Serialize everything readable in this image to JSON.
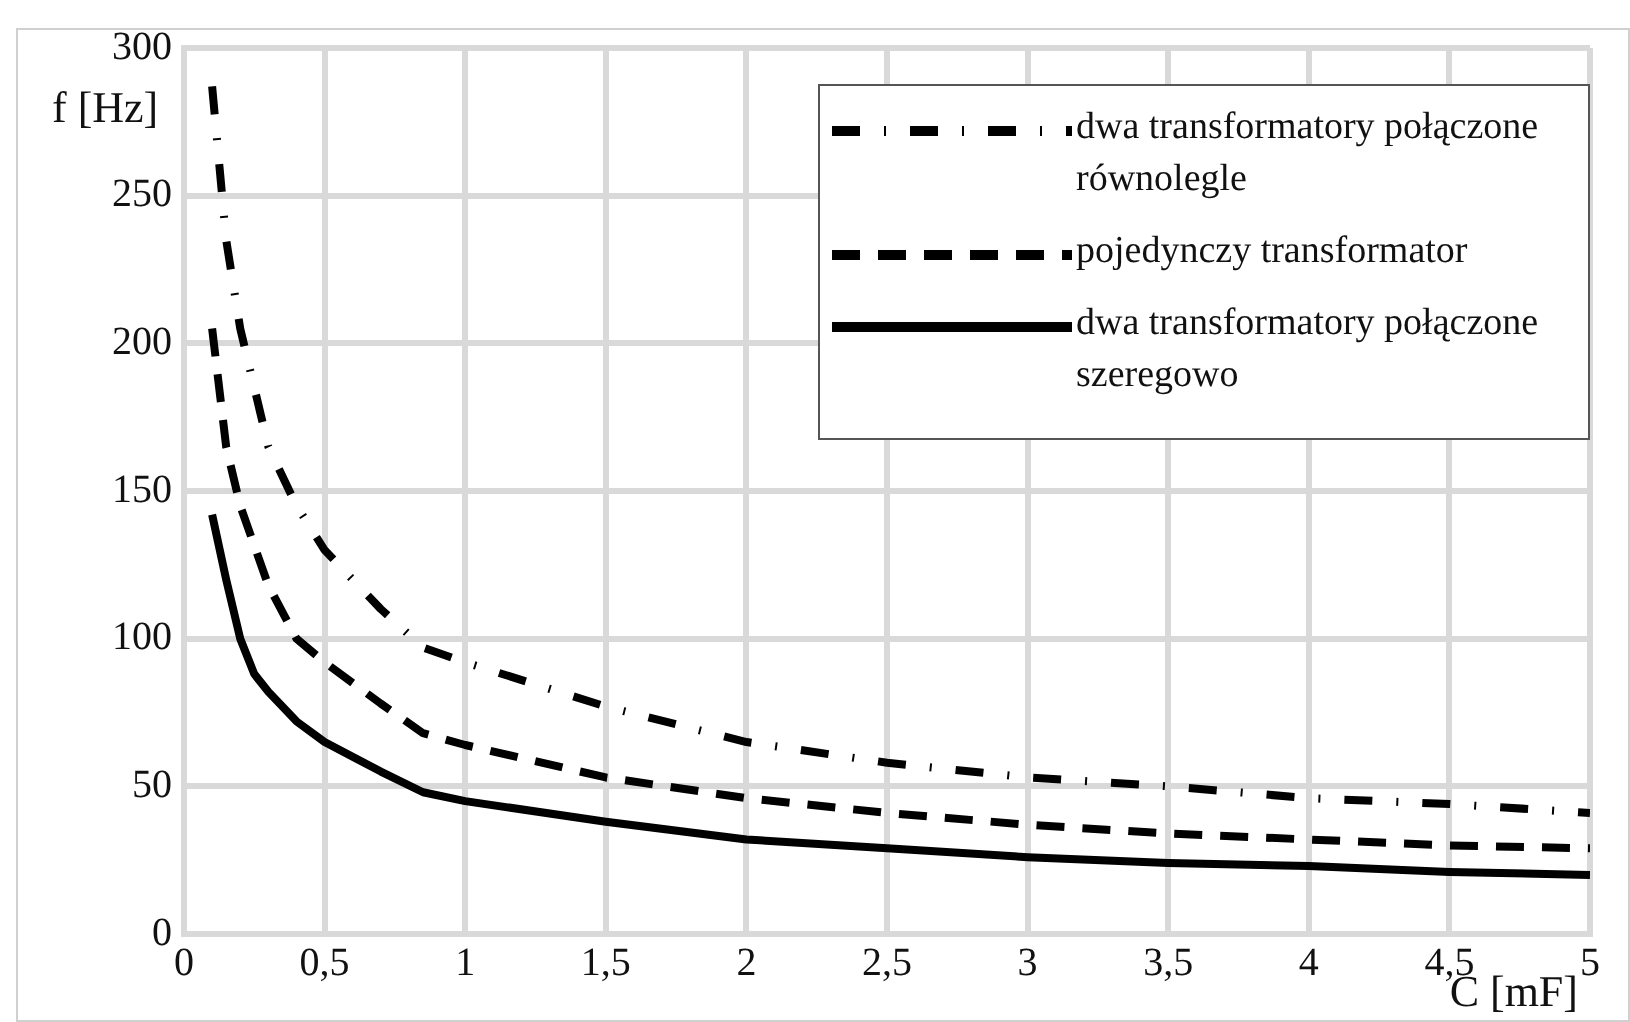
{
  "chart_data": {
    "type": "line",
    "xlabel": "C [mF]",
    "ylabel": "f [Hz]",
    "xlim": [
      0,
      5
    ],
    "xticks": [
      0,
      {
        "value": 0.5,
        "label": "0,5"
      },
      1,
      {
        "value": 1.5,
        "label": "1,5"
      },
      2,
      {
        "value": 2.5,
        "label": "2,5"
      },
      3,
      {
        "value": 3.5,
        "label": "3,5"
      },
      4,
      {
        "value": 4.5,
        "label": "4,5"
      },
      5
    ],
    "ylim": [
      0,
      300
    ],
    "yticks": [
      0,
      50,
      100,
      150,
      200,
      250,
      300
    ],
    "grid": true,
    "legend": "top right",
    "marker": "none",
    "series": [
      {
        "name": "dwa transformatory połączone równolegle",
        "color": "#000000",
        "line_style": "dashdot",
        "x": [
          0.1,
          0.15,
          0.2,
          0.3,
          0.4,
          0.5,
          0.7,
          0.85,
          1,
          1.5,
          2,
          2.5,
          3,
          3.5,
          4,
          4.5,
          5
        ],
        "values": [
          287,
          235,
          205,
          165,
          145,
          130,
          110,
          97,
          92,
          77,
          65,
          58,
          53,
          50,
          46,
          44,
          41
        ]
      },
      {
        "name": "pojedynczy transformator",
        "color": "#000000",
        "line_style": "dashed",
        "x": [
          0.1,
          0.15,
          0.2,
          0.3,
          0.4,
          0.5,
          0.7,
          0.85,
          1,
          1.5,
          2,
          2.5,
          3,
          3.5,
          4,
          4.5,
          5
        ],
        "values": [
          205,
          165,
          145,
          118,
          100,
          92,
          78,
          68,
          64,
          53,
          46,
          41,
          37,
          34,
          32,
          30,
          29
        ]
      },
      {
        "name": "dwa transformatory połączone szeregowo",
        "color": "#000000",
        "line_style": "solid",
        "x": [
          0.1,
          0.15,
          0.2,
          0.25,
          0.3,
          0.4,
          0.5,
          0.7,
          0.85,
          1,
          1.5,
          2,
          2.5,
          3,
          3.5,
          4,
          4.5,
          5
        ],
        "values": [
          142,
          120,
          100,
          88,
          82,
          72,
          65,
          55,
          48,
          45,
          38,
          32,
          29,
          26,
          24,
          23,
          21,
          20
        ]
      }
    ]
  }
}
